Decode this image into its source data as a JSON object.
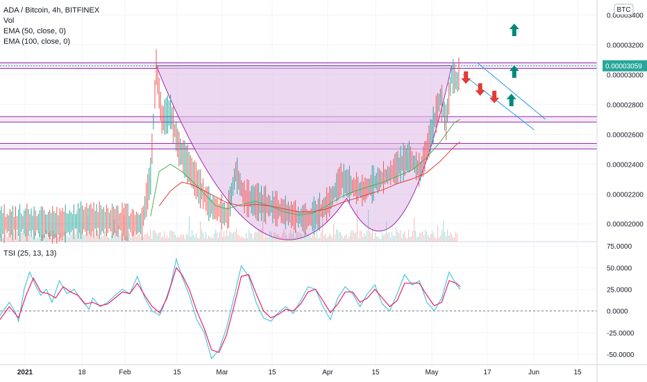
{
  "legend": {
    "symbol_line": "ADA / Bitcoin, 4h, BITFINEX",
    "vol": "Vol",
    "ema50": "EMA (50, close, 0)",
    "ema100": "EMA (100, close, 0)"
  },
  "currency_badge": "BTC",
  "tsi_label": "TSI (25, 13, 13)",
  "colors": {
    "purple_fill": "#e1bee7",
    "purple_line": "#9c27b0",
    "tsi_line": "#4dc4dc",
    "tsi_signal": "#e91e63",
    "ema50": "#4caf50",
    "ema100": "#e53935",
    "up_arrow": "#00897b",
    "down_arrow": "#e53935",
    "channel": "#2196f3",
    "last_price_bg": "#26a69a"
  },
  "chart_data": [
    {
      "type": "candlestick",
      "ylim": [
        1.88e-05,
        3.5e-05
      ],
      "yticks": [
        "0.00003400",
        "0.00003200",
        "0.00003000",
        "0.00002800",
        "0.00002600",
        "0.00002400",
        "0.00002200",
        "0.00002000"
      ],
      "last_price_label": "0.00003059",
      "horizontal_levels": [
        3.06e-05,
        2.7e-05,
        2.52e-05
      ],
      "xticks": [
        {
          "label": "2021",
          "bold": true
        },
        {
          "label": "18"
        },
        {
          "label": "Feb"
        },
        {
          "label": "15"
        },
        {
          "label": "Mar"
        },
        {
          "label": "15"
        },
        {
          "label": "Apr"
        },
        {
          "label": "15"
        },
        {
          "label": "May"
        },
        {
          "label": "17"
        },
        {
          "label": "Jun"
        },
        {
          "label": "15"
        }
      ],
      "price_path": [
        [
          0,
          2e-05
        ],
        [
          10,
          2.01e-05
        ],
        [
          20,
          1.99e-05
        ],
        [
          30,
          2.03e-05
        ],
        [
          40,
          2.02e-05
        ],
        [
          50,
          2e-05
        ],
        [
          53,
          2.32e-05
        ],
        [
          55,
          3.05e-05
        ],
        [
          57,
          2.7e-05
        ],
        [
          60,
          2.75e-05
        ],
        [
          63,
          2.5e-05
        ],
        [
          66,
          2.4e-05
        ],
        [
          70,
          2.25e-05
        ],
        [
          74,
          2.12e-05
        ],
        [
          78,
          2.08e-05
        ],
        [
          80,
          2.05e-05
        ],
        [
          83,
          2.35e-05
        ],
        [
          86,
          2.18e-05
        ],
        [
          90,
          2.15e-05
        ],
        [
          95,
          2.12e-05
        ],
        [
          100,
          2.08e-05
        ],
        [
          104,
          2.05e-05
        ],
        [
          108,
          2.03e-05
        ],
        [
          112,
          2.07e-05
        ],
        [
          116,
          2.15e-05
        ],
        [
          120,
          2.3e-05
        ],
        [
          124,
          2.25e-05
        ],
        [
          128,
          2.22e-05
        ],
        [
          132,
          2.28e-05
        ],
        [
          136,
          2.32e-05
        ],
        [
          140,
          2.38e-05
        ],
        [
          144,
          2.45e-05
        ],
        [
          148,
          2.35e-05
        ],
        [
          152,
          2.62e-05
        ],
        [
          155,
          2.85e-05
        ],
        [
          157,
          2.68e-05
        ],
        [
          159,
          3e-05
        ],
        [
          161,
          2.95e-05
        ],
        [
          162,
          3.06e-05
        ]
      ],
      "ema50_path": [
        [
          53,
          2.05e-05
        ],
        [
          56,
          2.35e-05
        ],
        [
          60,
          2.4e-05
        ],
        [
          64,
          2.35e-05
        ],
        [
          68,
          2.28e-05
        ],
        [
          72,
          2.2e-05
        ],
        [
          76,
          2.12e-05
        ],
        [
          80,
          2.1e-05
        ],
        [
          85,
          2.13e-05
        ],
        [
          90,
          2.15e-05
        ],
        [
          95,
          2.12e-05
        ],
        [
          100,
          2.08e-05
        ],
        [
          105,
          2.06e-05
        ],
        [
          110,
          2.07e-05
        ],
        [
          115,
          2.12e-05
        ],
        [
          120,
          2.18e-05
        ],
        [
          125,
          2.22e-05
        ],
        [
          130,
          2.25e-05
        ],
        [
          135,
          2.28e-05
        ],
        [
          140,
          2.32e-05
        ],
        [
          145,
          2.36e-05
        ],
        [
          150,
          2.44e-05
        ],
        [
          155,
          2.55e-05
        ],
        [
          160,
          2.68e-05
        ],
        [
          162,
          2.7e-05
        ]
      ],
      "ema100_path": [
        [
          56,
          2.12e-05
        ],
        [
          60,
          2.22e-05
        ],
        [
          64,
          2.28e-05
        ],
        [
          68,
          2.26e-05
        ],
        [
          72,
          2.22e-05
        ],
        [
          76,
          2.18e-05
        ],
        [
          80,
          2.14e-05
        ],
        [
          85,
          2.12e-05
        ],
        [
          90,
          2.13e-05
        ],
        [
          95,
          2.12e-05
        ],
        [
          100,
          2.1e-05
        ],
        [
          105,
          2.08e-05
        ],
        [
          110,
          2.08e-05
        ],
        [
          115,
          2.1e-05
        ],
        [
          120,
          2.14e-05
        ],
        [
          125,
          2.17e-05
        ],
        [
          130,
          2.2e-05
        ],
        [
          135,
          2.23e-05
        ],
        [
          140,
          2.27e-05
        ],
        [
          145,
          2.3e-05
        ],
        [
          150,
          2.34e-05
        ],
        [
          155,
          2.42e-05
        ],
        [
          160,
          2.52e-05
        ],
        [
          162,
          2.55e-05
        ]
      ],
      "cup_shape": {
        "start": [
          55,
          3.06e-05
        ],
        "bottom": [
          122,
          2.17e-05
        ],
        "end": [
          159,
          3.06e-05
        ]
      },
      "channel_lines": [
        {
          "from": [
            163,
            3e-05
          ],
          "to": [
            188,
            2.63e-05
          ]
        },
        {
          "from": [
            168,
            3.08e-05
          ],
          "to": [
            192,
            2.7e-05
          ]
        }
      ],
      "arrows": [
        {
          "dir": "up",
          "x": 181,
          "y": 3.3e-05
        },
        {
          "dir": "up",
          "x": 181,
          "y": 3.02e-05
        },
        {
          "dir": "up",
          "x": 180,
          "y": 2.83e-05
        },
        {
          "dir": "down",
          "x": 164,
          "y": 2.98e-05
        },
        {
          "dir": "down",
          "x": 169,
          "y": 2.9e-05
        },
        {
          "dir": "down",
          "x": 174,
          "y": 2.85e-05
        }
      ]
    },
    {
      "type": "line",
      "name": "TSI",
      "ylim": [
        -62,
        80
      ],
      "yticks": [
        "75.0000",
        "50.0000",
        "25.0000",
        "0.0000",
        "-25.0000",
        "-50.0000"
      ],
      "zero_line": 0,
      "tsi": [
        [
          0,
          -5
        ],
        [
          5,
          10
        ],
        [
          8,
          0
        ],
        [
          10,
          -12
        ],
        [
          13,
          25
        ],
        [
          16,
          45
        ],
        [
          19,
          30
        ],
        [
          22,
          18
        ],
        [
          25,
          25
        ],
        [
          28,
          10
        ],
        [
          32,
          35
        ],
        [
          36,
          20
        ],
        [
          40,
          25
        ],
        [
          44,
          12
        ],
        [
          48,
          2
        ],
        [
          50,
          15
        ],
        [
          54,
          5
        ],
        [
          58,
          10
        ],
        [
          62,
          18
        ],
        [
          66,
          25
        ],
        [
          70,
          20
        ],
        [
          74,
          40
        ],
        [
          78,
          15
        ],
        [
          82,
          0
        ],
        [
          86,
          -5
        ],
        [
          88,
          5
        ],
        [
          92,
          30
        ],
        [
          95,
          60
        ],
        [
          98,
          40
        ],
        [
          102,
          18
        ],
        [
          106,
          -10
        ],
        [
          110,
          -25
        ],
        [
          114,
          -55
        ],
        [
          118,
          -45
        ],
        [
          122,
          -20
        ],
        [
          126,
          15
        ],
        [
          130,
          52
        ],
        [
          134,
          40
        ],
        [
          138,
          10
        ],
        [
          142,
          -8
        ],
        [
          146,
          -12
        ],
        [
          150,
          -2
        ],
        [
          154,
          5
        ],
        [
          158,
          -3
        ],
        [
          162,
          12
        ],
        [
          166,
          28
        ],
        [
          170,
          25
        ],
        [
          174,
          5
        ],
        [
          178,
          -10
        ],
        [
          182,
          15
        ],
        [
          186,
          28
        ],
        [
          190,
          20
        ],
        [
          194,
          5
        ],
        [
          198,
          20
        ],
        [
          202,
          30
        ],
        [
          206,
          8
        ],
        [
          210,
          0
        ],
        [
          214,
          20
        ],
        [
          218,
          42
        ],
        [
          222,
          30
        ],
        [
          226,
          35
        ],
        [
          230,
          10
        ],
        [
          234,
          0
        ],
        [
          238,
          15
        ],
        [
          242,
          45
        ],
        [
          246,
          30
        ],
        [
          248,
          25
        ]
      ],
      "signal": [
        [
          0,
          -10
        ],
        [
          5,
          5
        ],
        [
          10,
          -8
        ],
        [
          14,
          18
        ],
        [
          18,
          38
        ],
        [
          22,
          22
        ],
        [
          26,
          20
        ],
        [
          30,
          15
        ],
        [
          34,
          28
        ],
        [
          38,
          22
        ],
        [
          42,
          18
        ],
        [
          46,
          8
        ],
        [
          50,
          10
        ],
        [
          54,
          6
        ],
        [
          58,
          8
        ],
        [
          62,
          15
        ],
        [
          66,
          22
        ],
        [
          70,
          20
        ],
        [
          74,
          32
        ],
        [
          78,
          18
        ],
        [
          82,
          5
        ],
        [
          86,
          -2
        ],
        [
          90,
          15
        ],
        [
          95,
          50
        ],
        [
          98,
          42
        ],
        [
          102,
          25
        ],
        [
          106,
          0
        ],
        [
          110,
          -20
        ],
        [
          114,
          -45
        ],
        [
          118,
          -48
        ],
        [
          122,
          -28
        ],
        [
          126,
          5
        ],
        [
          130,
          40
        ],
        [
          134,
          42
        ],
        [
          138,
          20
        ],
        [
          142,
          0
        ],
        [
          146,
          -8
        ],
        [
          150,
          -4
        ],
        [
          154,
          2
        ],
        [
          158,
          0
        ],
        [
          162,
          8
        ],
        [
          166,
          22
        ],
        [
          170,
          25
        ],
        [
          174,
          12
        ],
        [
          178,
          -2
        ],
        [
          182,
          8
        ],
        [
          186,
          22
        ],
        [
          190,
          22
        ],
        [
          194,
          10
        ],
        [
          198,
          15
        ],
        [
          202,
          25
        ],
        [
          206,
          15
        ],
        [
          210,
          5
        ],
        [
          214,
          12
        ],
        [
          218,
          32
        ],
        [
          222,
          32
        ],
        [
          226,
          32
        ],
        [
          230,
          18
        ],
        [
          234,
          6
        ],
        [
          238,
          10
        ],
        [
          242,
          35
        ],
        [
          246,
          32
        ],
        [
          248,
          28
        ]
      ]
    }
  ]
}
